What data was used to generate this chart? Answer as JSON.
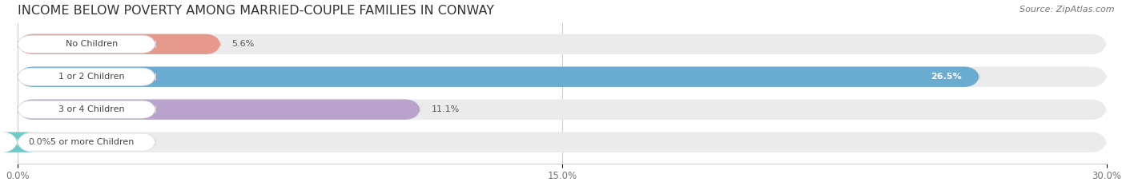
{
  "title": "INCOME BELOW POVERTY AMONG MARRIED-COUPLE FAMILIES IN CONWAY",
  "source": "Source: ZipAtlas.com",
  "categories": [
    "No Children",
    "1 or 2 Children",
    "3 or 4 Children",
    "5 or more Children"
  ],
  "values": [
    5.6,
    26.5,
    11.1,
    0.0
  ],
  "bar_colors": [
    "#e8998d",
    "#6aabd2",
    "#b9a3cc",
    "#6ec9c9"
  ],
  "background_color": "#ffffff",
  "bar_bg_color": "#ebebeb",
  "xlim": [
    0,
    30.0
  ],
  "xticks": [
    0.0,
    15.0,
    30.0
  ],
  "xticklabels": [
    "0.0%",
    "15.0%",
    "30.0%"
  ],
  "value_label_inside": [
    false,
    true,
    false,
    false
  ],
  "title_fontsize": 11.5,
  "bar_height": 0.62,
  "bar_gap": 0.38,
  "figsize": [
    14.06,
    2.33
  ],
  "dpi": 100
}
